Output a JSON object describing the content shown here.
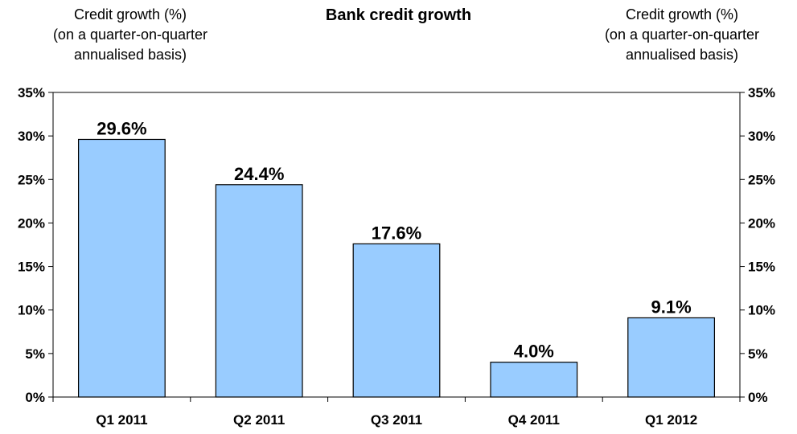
{
  "chart_data": {
    "type": "bar",
    "title": "Bank credit growth",
    "ylabel_left": [
      "Credit growth (%)",
      "(on a quarter-on-quarter",
      "annualised basis)"
    ],
    "ylabel_right": [
      "Credit growth (%)",
      "(on a quarter-on-quarter",
      "annualised basis)"
    ],
    "categories": [
      "Q1 2011",
      "Q2 2011",
      "Q3 2011",
      "Q4 2011",
      "Q1 2012"
    ],
    "values": [
      29.6,
      24.4,
      17.6,
      4.0,
      9.1
    ],
    "data_labels": [
      "29.6%",
      "24.4%",
      "17.6%",
      "4.0%",
      "9.1%"
    ],
    "ylim": [
      0,
      35
    ],
    "yticks": [
      0,
      5,
      10,
      15,
      20,
      25,
      30,
      35
    ],
    "ytick_labels": [
      "0%",
      "5%",
      "10%",
      "15%",
      "20%",
      "25%",
      "30%",
      "35%"
    ],
    "grid": false,
    "legend": "none",
    "bar_color": "#99ccff",
    "bar_edge_color": "#000000"
  }
}
